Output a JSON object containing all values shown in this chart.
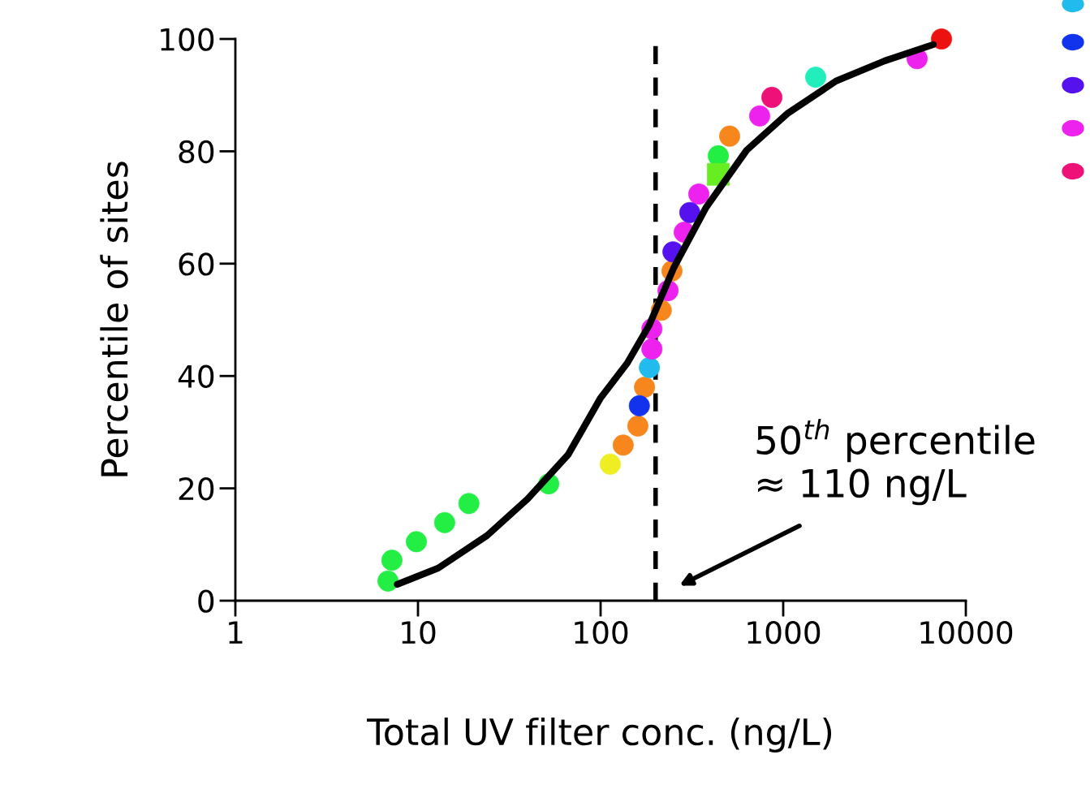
{
  "chart_data": {
    "type": "scatter",
    "xlabel": "Total UV filter conc. (ng/L)",
    "ylabel": "Percentile of sites",
    "log": "x",
    "xlim": [
      1,
      10000
    ],
    "xticks": [
      1,
      10,
      100,
      1000,
      10000
    ],
    "ylim": [
      0,
      100
    ],
    "yticks": [
      0,
      20,
      40,
      60,
      80,
      100
    ],
    "grid": false,
    "marker": "circle",
    "series": [
      {
        "color": "#22ee44",
        "x": [
          6.85,
          7.2,
          9.8,
          14.0,
          19.0,
          52,
          441
        ],
        "values": [
          3.5,
          7.2,
          10.5,
          13.9,
          17.3,
          20.8,
          79.2
        ]
      },
      {
        "color": "#eeee22",
        "x": [
          113
        ],
        "values": [
          24.3
        ]
      },
      {
        "color": "#f7861c",
        "x": [
          133,
          160,
          174,
          215,
          246,
          509
        ],
        "values": [
          27.7,
          31.1,
          38.0,
          51.7,
          58.7,
          82.7
        ]
      },
      {
        "color": "#1133ee",
        "x": [
          163
        ],
        "values": [
          34.7
        ]
      },
      {
        "color": "#22bbee",
        "x": [
          185
        ],
        "values": [
          41.5
        ]
      },
      {
        "color": "#ee22ee",
        "x": [
          191,
          191,
          234,
          287,
          345,
          743,
          5410
        ],
        "values": [
          44.8,
          48.4,
          55.2,
          65.6,
          72.4,
          86.3,
          96.5
        ]
      },
      {
        "color": "#5511ee",
        "x": [
          249,
          308
        ],
        "values": [
          62.1,
          69.1
        ]
      },
      {
        "color": "#66ee22",
        "marker": "square",
        "x": [
          441
        ],
        "values": [
          75.9
        ]
      },
      {
        "color": "#ee1177",
        "x": [
          867
        ],
        "values": [
          89.6
        ]
      },
      {
        "color": "#22eebb",
        "x": [
          1506
        ],
        "values": [
          93.2
        ]
      },
      {
        "color": "#ee1111",
        "x": [
          7360
        ],
        "values": [
          100
        ]
      },
      {
        "type": "line",
        "color": "#000000",
        "marker": "none",
        "x": [
          7.7,
          12.9,
          23.9,
          39.8,
          66.4,
          100,
          140,
          185,
          251,
          378,
          631,
          1052,
          1944,
          3594,
          6640
        ],
        "values": [
          2.9,
          5.8,
          11.6,
          18.1,
          26.0,
          36.1,
          42.3,
          49.1,
          59.2,
          70.0,
          80.2,
          86.7,
          92.5,
          96.1,
          99.0
        ]
      }
    ],
    "ref_lines": [
      {
        "axis": "x",
        "value": 200,
        "color": "#000000",
        "line_style": "dashed"
      }
    ],
    "annotations": [
      "50$^{th}$ percentile\n≈ 110 ng/L"
    ]
  }
}
